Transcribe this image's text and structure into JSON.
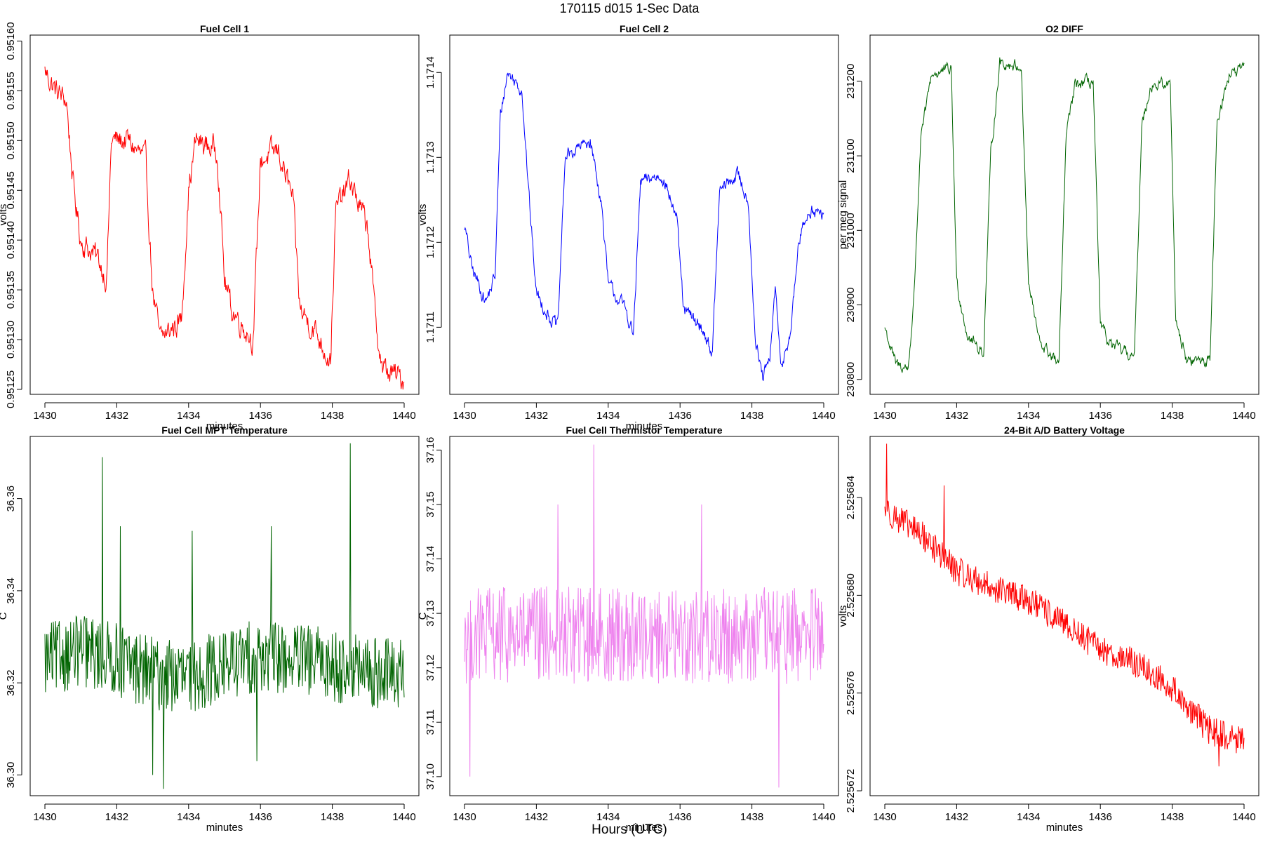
{
  "figure": {
    "title": "170115   d015   1-Sec Data",
    "xlabel": "Hours (UTC)"
  },
  "chart_data": [
    {
      "type": "line",
      "title": "Fuel Cell 1",
      "xlabel": "minutes",
      "ylabel": "volts",
      "color": "#ff0000",
      "xlim": [
        1430,
        1440
      ],
      "ylim": [
        0.951245,
        0.951606
      ],
      "xticks": [
        1430,
        1432,
        1434,
        1436,
        1438,
        1440
      ],
      "yticks": [
        0.95125,
        0.9513,
        0.95135,
        0.9514,
        0.95145,
        0.9515,
        0.95155,
        0.9516
      ],
      "yticklabels": [
        "0.95125",
        "0.95130",
        "0.95135",
        "0.95140",
        "0.95145",
        "0.95150",
        "0.95155",
        "0.95160"
      ],
      "levels": [
        {
          "x": 1430.0,
          "y": 0.95157
        },
        {
          "x": 1430.3,
          "y": 0.95155
        },
        {
          "x": 1430.6,
          "y": 0.95154
        },
        {
          "x": 1430.8,
          "y": 0.95145
        },
        {
          "x": 1431.0,
          "y": 0.9514
        },
        {
          "x": 1431.5,
          "y": 0.95138
        },
        {
          "x": 1431.72,
          "y": 0.95136
        },
        {
          "x": 1431.85,
          "y": 0.9515
        },
        {
          "x": 1432.3,
          "y": 0.9515
        },
        {
          "x": 1432.8,
          "y": 0.95148
        },
        {
          "x": 1433.0,
          "y": 0.95135
        },
        {
          "x": 1433.2,
          "y": 0.9513
        },
        {
          "x": 1433.8,
          "y": 0.95132
        },
        {
          "x": 1434.0,
          "y": 0.95145
        },
        {
          "x": 1434.2,
          "y": 0.9515
        },
        {
          "x": 1434.8,
          "y": 0.95149
        },
        {
          "x": 1435.0,
          "y": 0.95136
        },
        {
          "x": 1435.2,
          "y": 0.95133
        },
        {
          "x": 1435.8,
          "y": 0.9513
        },
        {
          "x": 1436.0,
          "y": 0.95148
        },
        {
          "x": 1436.5,
          "y": 0.95149
        },
        {
          "x": 1436.9,
          "y": 0.95144
        },
        {
          "x": 1437.1,
          "y": 0.95133
        },
        {
          "x": 1437.5,
          "y": 0.95131
        },
        {
          "x": 1437.95,
          "y": 0.95128
        },
        {
          "x": 1438.1,
          "y": 0.95143
        },
        {
          "x": 1438.5,
          "y": 0.95146
        },
        {
          "x": 1439.0,
          "y": 0.95141
        },
        {
          "x": 1439.2,
          "y": 0.95132
        },
        {
          "x": 1439.4,
          "y": 0.95127
        },
        {
          "x": 1440.0,
          "y": 0.95126
        }
      ],
      "noise": 1.8e-05
    },
    {
      "type": "line",
      "title": "Fuel Cell 2",
      "xlabel": "minutes",
      "ylabel": "volts",
      "color": "#0000ff",
      "xlim": [
        1430,
        1440
      ],
      "ylim": [
        1.171021,
        1.171444
      ],
      "xticks": [
        1430,
        1432,
        1434,
        1436,
        1438,
        1440
      ],
      "yticks": [
        1.1711,
        1.1712,
        1.1713,
        1.1714
      ],
      "yticklabels": [
        "1.1711",
        "1.1712",
        "1.1713",
        "1.1714"
      ],
      "levels": [
        {
          "x": 1430.0,
          "y": 1.17122
        },
        {
          "x": 1430.2,
          "y": 1.17117
        },
        {
          "x": 1430.6,
          "y": 1.17113
        },
        {
          "x": 1430.85,
          "y": 1.17116
        },
        {
          "x": 1431.0,
          "y": 1.17135
        },
        {
          "x": 1431.2,
          "y": 1.1714
        },
        {
          "x": 1431.6,
          "y": 1.17138
        },
        {
          "x": 1431.8,
          "y": 1.17125
        },
        {
          "x": 1432.0,
          "y": 1.17114
        },
        {
          "x": 1432.4,
          "y": 1.17111
        },
        {
          "x": 1432.6,
          "y": 1.1711
        },
        {
          "x": 1432.8,
          "y": 1.1713
        },
        {
          "x": 1433.5,
          "y": 1.17132
        },
        {
          "x": 1433.8,
          "y": 1.17125
        },
        {
          "x": 1434.0,
          "y": 1.17115
        },
        {
          "x": 1434.5,
          "y": 1.17112
        },
        {
          "x": 1434.7,
          "y": 1.17109
        },
        {
          "x": 1434.9,
          "y": 1.17127
        },
        {
          "x": 1435.5,
          "y": 1.17128
        },
        {
          "x": 1435.9,
          "y": 1.17123
        },
        {
          "x": 1436.1,
          "y": 1.17112
        },
        {
          "x": 1436.6,
          "y": 1.1711
        },
        {
          "x": 1436.9,
          "y": 1.17107
        },
        {
          "x": 1437.1,
          "y": 1.17126
        },
        {
          "x": 1437.6,
          "y": 1.17128
        },
        {
          "x": 1437.9,
          "y": 1.17125
        },
        {
          "x": 1438.1,
          "y": 1.17108
        },
        {
          "x": 1438.3,
          "y": 1.17104
        },
        {
          "x": 1438.5,
          "y": 1.17106
        },
        {
          "x": 1438.65,
          "y": 1.17115
        },
        {
          "x": 1438.8,
          "y": 1.17105
        },
        {
          "x": 1439.1,
          "y": 1.1711
        },
        {
          "x": 1439.3,
          "y": 1.1712
        },
        {
          "x": 1439.6,
          "y": 1.17124
        },
        {
          "x": 1440.0,
          "y": 1.17123
        }
      ],
      "noise": 1.2e-05
    },
    {
      "type": "line",
      "title": "O2 DIFF",
      "xlabel": "",
      "ylabel": "per meg signal",
      "color": "#006400",
      "xlim": [
        1430,
        1440
      ],
      "ylim": [
        230780,
        231262
      ],
      "xticks": [
        1430,
        1432,
        1434,
        1436,
        1438,
        1440
      ],
      "yticks": [
        230800,
        230900,
        231000,
        231100,
        231200
      ],
      "yticklabels": [
        "230800",
        "230900",
        "231000",
        "231100",
        "231200"
      ],
      "levels": [
        {
          "x": 1430.0,
          "y": 230870
        },
        {
          "x": 1430.3,
          "y": 230820
        },
        {
          "x": 1430.65,
          "y": 230815
        },
        {
          "x": 1430.8,
          "y": 230900
        },
        {
          "x": 1431.0,
          "y": 231120
        },
        {
          "x": 1431.3,
          "y": 231210
        },
        {
          "x": 1431.85,
          "y": 231215
        },
        {
          "x": 1432.0,
          "y": 230930
        },
        {
          "x": 1432.3,
          "y": 230860
        },
        {
          "x": 1432.75,
          "y": 230835
        },
        {
          "x": 1432.95,
          "y": 231100
        },
        {
          "x": 1433.2,
          "y": 231225
        },
        {
          "x": 1433.8,
          "y": 231220
        },
        {
          "x": 1434.0,
          "y": 230930
        },
        {
          "x": 1434.3,
          "y": 230850
        },
        {
          "x": 1434.85,
          "y": 230820
        },
        {
          "x": 1435.05,
          "y": 231130
        },
        {
          "x": 1435.3,
          "y": 231195
        },
        {
          "x": 1435.8,
          "y": 231200
        },
        {
          "x": 1436.0,
          "y": 230870
        },
        {
          "x": 1436.3,
          "y": 230845
        },
        {
          "x": 1436.95,
          "y": 230830
        },
        {
          "x": 1437.15,
          "y": 231140
        },
        {
          "x": 1437.4,
          "y": 231195
        },
        {
          "x": 1437.95,
          "y": 231195
        },
        {
          "x": 1438.1,
          "y": 230880
        },
        {
          "x": 1438.4,
          "y": 230825
        },
        {
          "x": 1439.05,
          "y": 230825
        },
        {
          "x": 1439.25,
          "y": 231150
        },
        {
          "x": 1439.6,
          "y": 231210
        },
        {
          "x": 1440.0,
          "y": 231215
        }
      ],
      "noise": 12
    },
    {
      "type": "line",
      "title": "Fuel Cell MPT Temperature",
      "xlabel": "minutes",
      "ylabel": "C",
      "color": "#006400",
      "xlim": [
        1430,
        1440
      ],
      "ylim": [
        36.2955,
        36.3735
      ],
      "xticks": [
        1430,
        1432,
        1434,
        1436,
        1438,
        1440
      ],
      "yticks": [
        36.3,
        36.32,
        36.34,
        36.36
      ],
      "yticklabels": [
        "36.30",
        "36.32",
        "36.34",
        "36.36"
      ],
      "levels": [
        {
          "x": 1430.0,
          "y": 36.325
        },
        {
          "x": 1431.0,
          "y": 36.327
        },
        {
          "x": 1432.0,
          "y": 36.325
        },
        {
          "x": 1433.0,
          "y": 36.322
        },
        {
          "x": 1434.0,
          "y": 36.321
        },
        {
          "x": 1435.0,
          "y": 36.324
        },
        {
          "x": 1436.0,
          "y": 36.326
        },
        {
          "x": 1437.0,
          "y": 36.325
        },
        {
          "x": 1438.0,
          "y": 36.324
        },
        {
          "x": 1439.0,
          "y": 36.322
        },
        {
          "x": 1440.0,
          "y": 36.322
        }
      ],
      "noise": 0.008,
      "spikes": [
        {
          "x": 1431.6,
          "y": 36.369
        },
        {
          "x": 1432.1,
          "y": 36.354
        },
        {
          "x": 1438.5,
          "y": 36.372
        },
        {
          "x": 1433.3,
          "y": 36.297
        },
        {
          "x": 1433.0,
          "y": 36.3
        },
        {
          "x": 1435.9,
          "y": 36.303
        },
        {
          "x": 1436.3,
          "y": 36.354
        },
        {
          "x": 1434.1,
          "y": 36.353
        }
      ]
    },
    {
      "type": "line",
      "title": "Fuel Cell Thermistor Temperature",
      "xlabel": "minutes",
      "ylabel": "C",
      "color": "#ee82ee",
      "xlim": [
        1430,
        1440
      ],
      "ylim": [
        37.0965,
        37.1625
      ],
      "xticks": [
        1430,
        1432,
        1434,
        1436,
        1438,
        1440
      ],
      "yticks": [
        37.1,
        37.11,
        37.12,
        37.13,
        37.14,
        37.15,
        37.16
      ],
      "yticklabels": [
        "37.10",
        "37.11",
        "37.12",
        "37.13",
        "37.14",
        "37.15",
        "37.16"
      ],
      "levels": [
        {
          "x": 1430.0,
          "y": 37.126
        },
        {
          "x": 1435.0,
          "y": 37.126
        },
        {
          "x": 1440.0,
          "y": 37.126
        }
      ],
      "noise": 0.009,
      "spikes": [
        {
          "x": 1433.6,
          "y": 37.161
        },
        {
          "x": 1430.15,
          "y": 37.1
        },
        {
          "x": 1438.75,
          "y": 37.098
        },
        {
          "x": 1432.6,
          "y": 37.15
        },
        {
          "x": 1436.6,
          "y": 37.15
        }
      ]
    },
    {
      "type": "line",
      "title": "24-Bit A/D Battery Voltage",
      "xlabel": "minutes",
      "ylabel": "volts",
      "color": "#ff0000",
      "xlim": [
        1430,
        1440
      ],
      "ylim": [
        2.5256718,
        2.5256865
      ],
      "xticks": [
        1430,
        1432,
        1434,
        1436,
        1438,
        1440
      ],
      "yticks": [
        2.525672,
        2.525676,
        2.52568,
        2.525684
      ],
      "yticklabels": [
        "2.525672",
        "2.525676",
        "2.525680",
        "2.525684"
      ],
      "levels": [
        {
          "x": 1430.0,
          "y": 2.5256835
        },
        {
          "x": 1431.0,
          "y": 2.5256825
        },
        {
          "x": 1432.0,
          "y": 2.525681
        },
        {
          "x": 1433.0,
          "y": 2.5256803
        },
        {
          "x": 1434.0,
          "y": 2.5256798
        },
        {
          "x": 1435.0,
          "y": 2.5256788
        },
        {
          "x": 1436.0,
          "y": 2.5256778
        },
        {
          "x": 1437.0,
          "y": 2.5256772
        },
        {
          "x": 1438.0,
          "y": 2.5256762
        },
        {
          "x": 1439.0,
          "y": 2.5256745
        },
        {
          "x": 1440.0,
          "y": 2.525674
        }
      ],
      "noise": 6e-07,
      "spikes": [
        {
          "x": 1430.05,
          "y": 2.5256862
        },
        {
          "x": 1431.65,
          "y": 2.5256845
        },
        {
          "x": 1439.3,
          "y": 2.525673
        }
      ]
    }
  ]
}
